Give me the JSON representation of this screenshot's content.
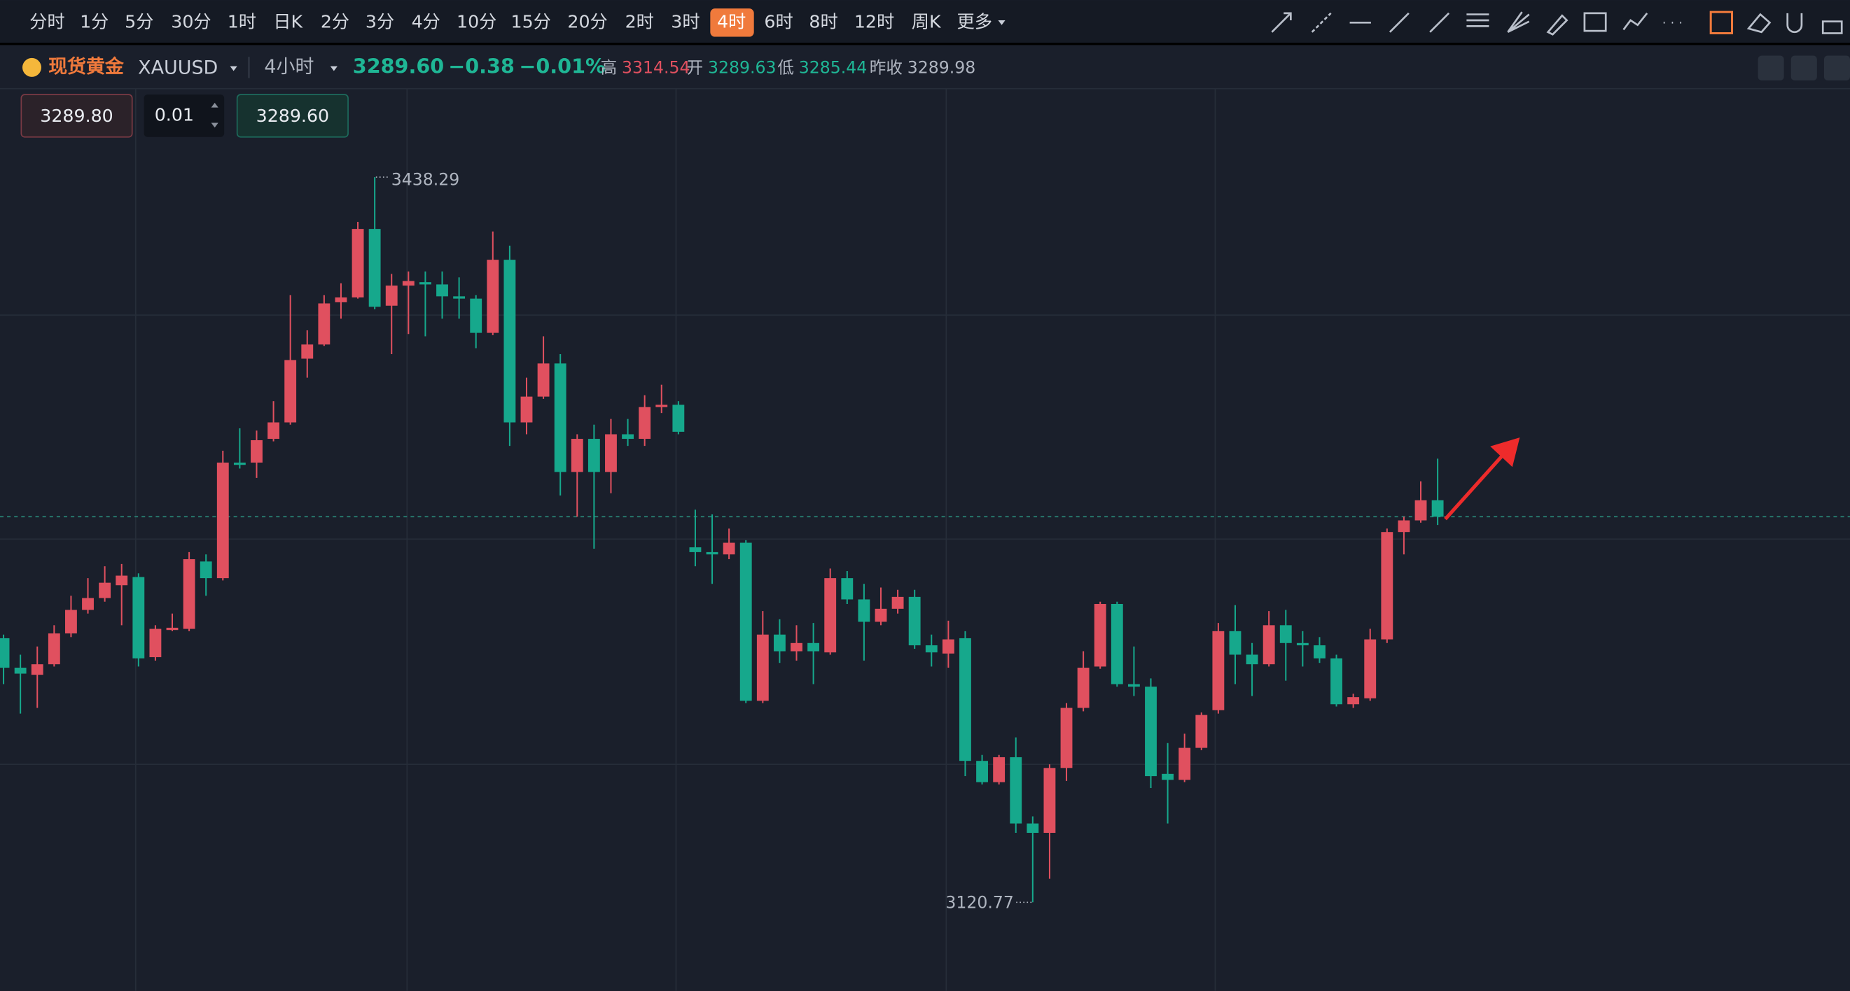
{
  "header": {
    "periods": [
      "分时",
      "1分",
      "5分",
      "30分",
      "1时",
      "日K",
      "2分",
      "3分",
      "4分",
      "10分",
      "15分",
      "20分",
      "2时",
      "3时",
      "4时",
      "6时",
      "8时",
      "12时",
      "周K",
      "更多"
    ],
    "active_period": "4时",
    "name": "现货黄金",
    "symbol": "XAUUSD",
    "interval": "4小时",
    "price": "3289.60",
    "change": "−0.38",
    "change_pct": "−0.01%",
    "high_label": "高",
    "high": "3314.54",
    "open_label": "开",
    "open": "3289.63",
    "low_label": "低",
    "low": "3285.44",
    "prev_close_label": "昨收",
    "prev_close": "3289.98"
  },
  "order": {
    "sell": "3289.80",
    "quantity": "0.01",
    "buy": "3289.60"
  },
  "chart_data": {
    "type": "candlestick",
    "up_color": "#e0505f",
    "down_color": "#16a88c",
    "max_label": 3438.29,
    "min_label": 3120.77,
    "max_index": 22,
    "min_index": 61,
    "open": [
      3236.4,
      3223.5,
      3220.4,
      3225.0,
      3238.5,
      3248.8,
      3254.0,
      3259.6,
      3263.2,
      3228.1,
      3240.0,
      3240.5,
      3270.0,
      3262.7,
      3313.3,
      3313.3,
      3323.7,
      3330.9,
      3358.8,
      3365.0,
      3383.5,
      3385.6,
      3415.6,
      3382.0,
      3390.8,
      3392.3,
      3391.3,
      3386.1,
      3385.1,
      3370.1,
      3402.1,
      3330.9,
      3342.2,
      3356.7,
      3309.2,
      3323.7,
      3309.2,
      3325.7,
      3323.7,
      3337.6,
      3338.6,
      3276.2,
      3274.1,
      3273.1,
      3278.2,
      3209.0,
      3238.0,
      3230.7,
      3234.3,
      3230.2,
      3262.7,
      3253.4,
      3243.6,
      3249.3,
      3254.5,
      3233.3,
      3229.7,
      3236.4,
      3182.7,
      3173.4,
      3184.3,
      3155.3,
      3151.2,
      3179.6,
      3205.9,
      3224.0,
      3251.4,
      3216.3,
      3215.2,
      3177.0,
      3174.4,
      3188.4,
      3204.9,
      3239.5,
      3229.2,
      3225.0,
      3242.1,
      3234.3,
      3233.3,
      3227.6,
      3207.5,
      3210.1,
      3235.9,
      3282.9,
      3288.0,
      3296.8
    ],
    "high": [
      3238.0,
      3229.2,
      3232.8,
      3242.1,
      3255.0,
      3262.7,
      3267.9,
      3268.9,
      3264.8,
      3242.1,
      3247.2,
      3274.1,
      3273.1,
      3318.5,
      3328.3,
      3327.3,
      3340.2,
      3386.6,
      3371.2,
      3386.6,
      3391.8,
      3418.7,
      3438.29,
      3395.9,
      3397.0,
      3397.0,
      3397.0,
      3394.4,
      3386.6,
      3414.5,
      3408.3,
      3350.5,
      3368.6,
      3360.8,
      3325.7,
      3329.9,
      3332.4,
      3332.4,
      3342.8,
      3347.4,
      3340.2,
      3292.7,
      3290.6,
      3284.4,
      3279.3,
      3248.3,
      3244.7,
      3242.1,
      3243.1,
      3266.9,
      3265.8,
      3260.2,
      3258.6,
      3257.6,
      3257.6,
      3238.0,
      3244.1,
      3239.5,
      3185.3,
      3185.3,
      3193.0,
      3158.4,
      3181.2,
      3208.0,
      3230.7,
      3252.4,
      3252.4,
      3232.8,
      3218.8,
      3190.5,
      3194.6,
      3203.9,
      3243.1,
      3250.9,
      3234.3,
      3248.3,
      3248.8,
      3239.5,
      3236.9,
      3229.2,
      3212.1,
      3240.5,
      3284.4,
      3289.6,
      3305.1,
      3315.0
    ],
    "low": [
      3216.3,
      3203.4,
      3205.9,
      3224.0,
      3236.9,
      3247.2,
      3252.4,
      3242.1,
      3224.0,
      3226.6,
      3239.5,
      3239.5,
      3255.0,
      3261.7,
      3310.7,
      3306.6,
      3322.6,
      3329.9,
      3350.5,
      3364.4,
      3376.3,
      3385.1,
      3380.4,
      3360.8,
      3369.6,
      3368.6,
      3376.3,
      3376.3,
      3363.4,
      3369.1,
      3320.6,
      3325.7,
      3341.2,
      3298.9,
      3289.6,
      3275.6,
      3299.9,
      3320.6,
      3320.6,
      3335.0,
      3325.7,
      3267.9,
      3260.2,
      3271.0,
      3208.0,
      3208.0,
      3225.6,
      3226.6,
      3216.3,
      3229.2,
      3251.4,
      3226.6,
      3242.1,
      3247.2,
      3231.8,
      3224.0,
      3223.5,
      3176.0,
      3172.4,
      3172.4,
      3151.2,
      3120.77,
      3131.1,
      3173.9,
      3204.4,
      3223.0,
      3215.2,
      3211.1,
      3170.8,
      3155.3,
      3173.4,
      3187.4,
      3203.4,
      3216.3,
      3211.1,
      3224.0,
      3217.8,
      3224.0,
      3225.6,
      3206.5,
      3205.9,
      3209.0,
      3234.3,
      3273.1,
      3287.0,
      3286.0
    ],
    "close": [
      3223.5,
      3220.9,
      3225.0,
      3238.5,
      3248.8,
      3254.0,
      3260.7,
      3263.8,
      3227.6,
      3240.5,
      3241.0,
      3271.0,
      3262.7,
      3313.3,
      3312.3,
      3323.1,
      3330.9,
      3358.2,
      3365.0,
      3383.0,
      3385.6,
      3415.6,
      3381.5,
      3390.8,
      3392.8,
      3391.3,
      3386.1,
      3385.1,
      3370.1,
      3402.1,
      3330.9,
      3342.2,
      3356.7,
      3309.2,
      3323.7,
      3309.2,
      3325.7,
      3323.7,
      3337.6,
      3338.6,
      3326.8,
      3274.1,
      3273.1,
      3278.2,
      3209.0,
      3238.0,
      3230.7,
      3234.3,
      3230.7,
      3262.7,
      3253.4,
      3243.6,
      3249.3,
      3254.5,
      3233.3,
      3230.2,
      3235.9,
      3182.7,
      3173.4,
      3184.3,
      3155.3,
      3151.2,
      3179.6,
      3205.9,
      3223.5,
      3251.4,
      3216.3,
      3215.2,
      3176.0,
      3174.4,
      3188.4,
      3202.8,
      3239.5,
      3229.2,
      3225.0,
      3242.1,
      3234.3,
      3233.3,
      3227.6,
      3207.5,
      3210.6,
      3235.9,
      3282.9,
      3288.0,
      3296.8,
      3289.6
    ]
  }
}
